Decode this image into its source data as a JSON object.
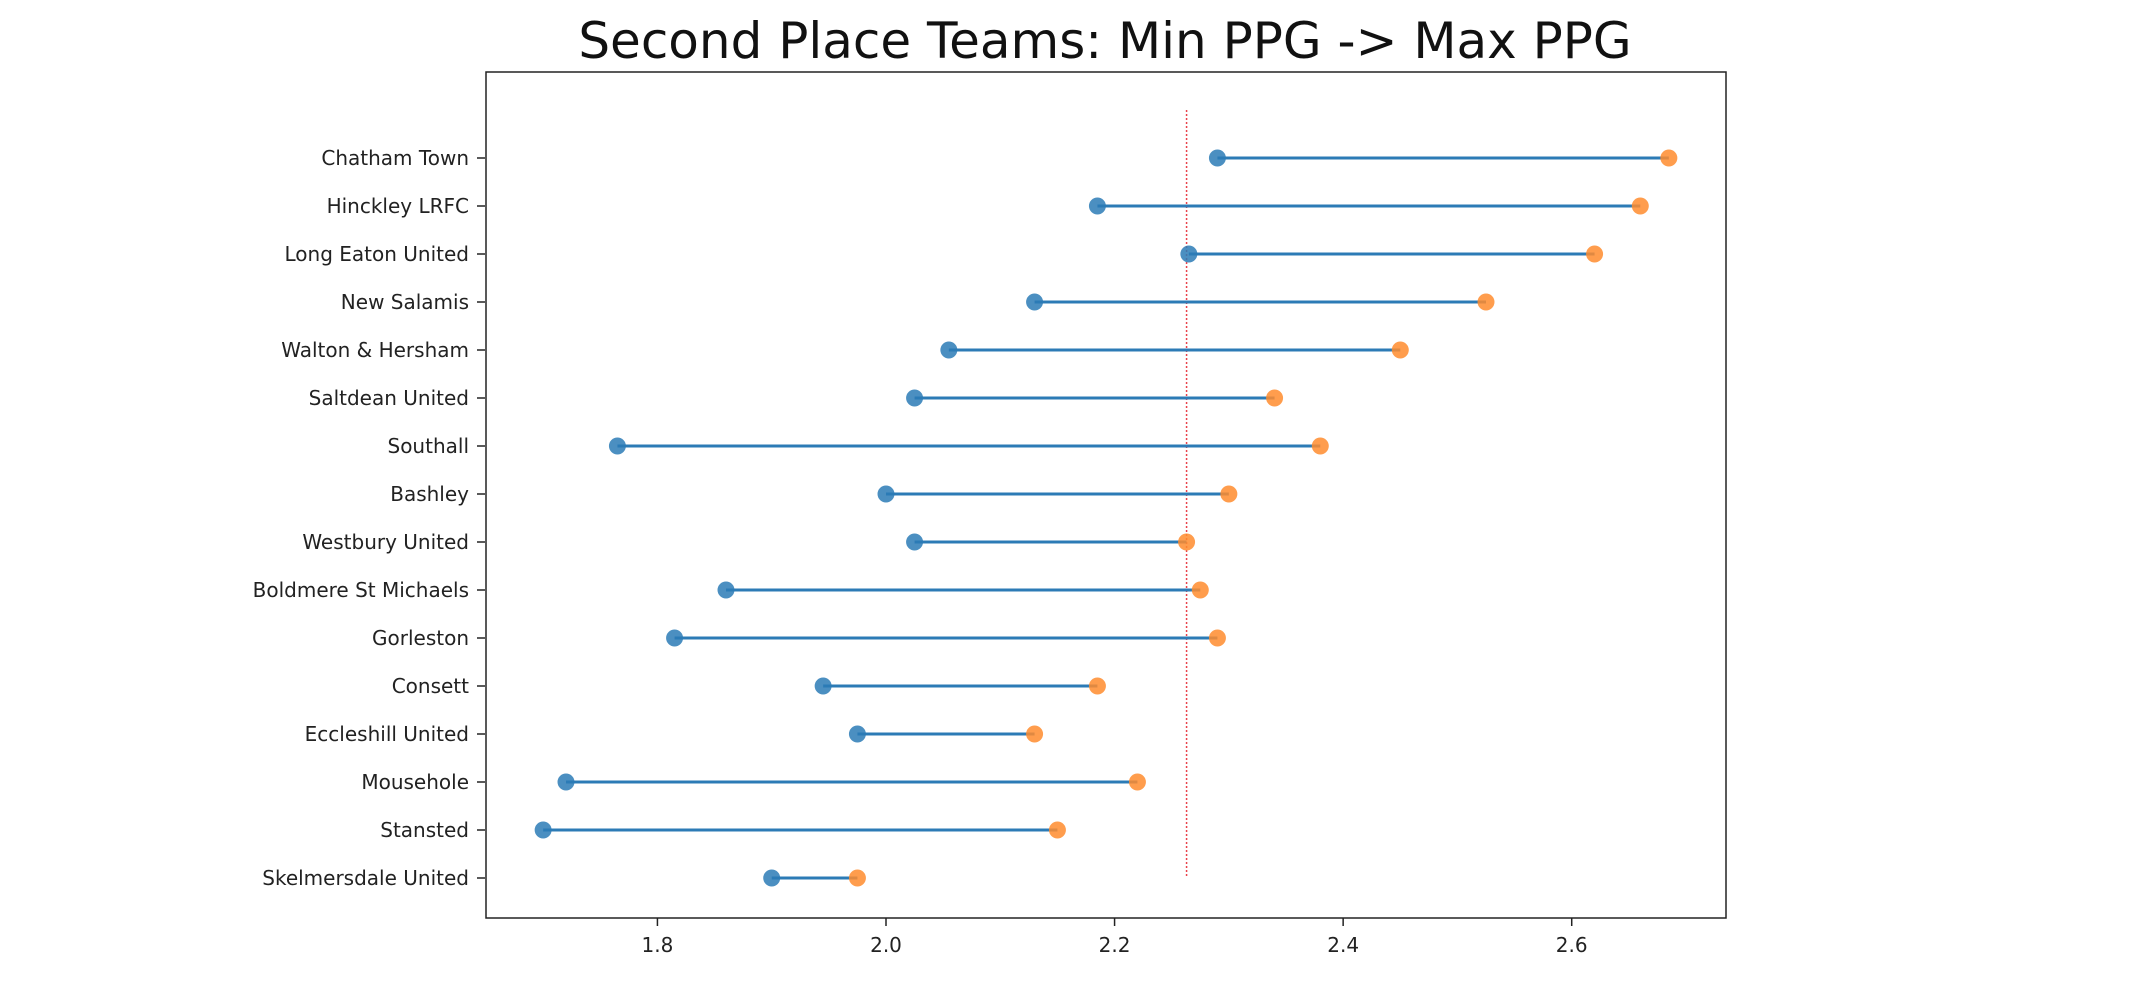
{
  "chart_data": {
    "type": "dumbbell",
    "title": "Second Place Teams: Min PPG -> Max PPG",
    "xlabel": "",
    "ylabel": "",
    "xlim": [
      1.65,
      2.735
    ],
    "xticks": [
      1.8,
      2.0,
      2.2,
      2.4,
      2.6
    ],
    "xtick_labels": [
      "1.8",
      "2.0",
      "2.2",
      "2.4",
      "2.6"
    ],
    "reference_line": {
      "x": 2.263,
      "color": "#e8434b",
      "style": "dotted"
    },
    "colors": {
      "min": "#2c7bb6",
      "max": "#ff8c2e",
      "connector": "#2c7bb6"
    },
    "series_names": {
      "min": "",
      "max": ""
    },
    "teams": [
      {
        "name": "Chatham Town",
        "min": 2.29,
        "max": 2.685
      },
      {
        "name": "Hinckley LRFC",
        "min": 2.185,
        "max": 2.66
      },
      {
        "name": "Long Eaton United",
        "min": 2.265,
        "max": 2.62
      },
      {
        "name": "New Salamis",
        "min": 2.13,
        "max": 2.525
      },
      {
        "name": "Walton & Hersham",
        "min": 2.055,
        "max": 2.45
      },
      {
        "name": "Saltdean United",
        "min": 2.025,
        "max": 2.34
      },
      {
        "name": "Southall",
        "min": 1.765,
        "max": 2.38
      },
      {
        "name": "Bashley",
        "min": 2.0,
        "max": 2.3
      },
      {
        "name": "Westbury United",
        "min": 2.025,
        "max": 2.263
      },
      {
        "name": "Boldmere St Michaels",
        "min": 1.86,
        "max": 2.275
      },
      {
        "name": "Gorleston",
        "min": 1.815,
        "max": 2.29
      },
      {
        "name": "Consett",
        "min": 1.945,
        "max": 2.185
      },
      {
        "name": "Eccleshill United",
        "min": 1.975,
        "max": 2.13
      },
      {
        "name": "Mousehole",
        "min": 1.72,
        "max": 2.22
      },
      {
        "name": "Stansted",
        "min": 1.7,
        "max": 2.15
      },
      {
        "name": "Skelmersdale United",
        "min": 1.9,
        "max": 1.975
      }
    ]
  }
}
